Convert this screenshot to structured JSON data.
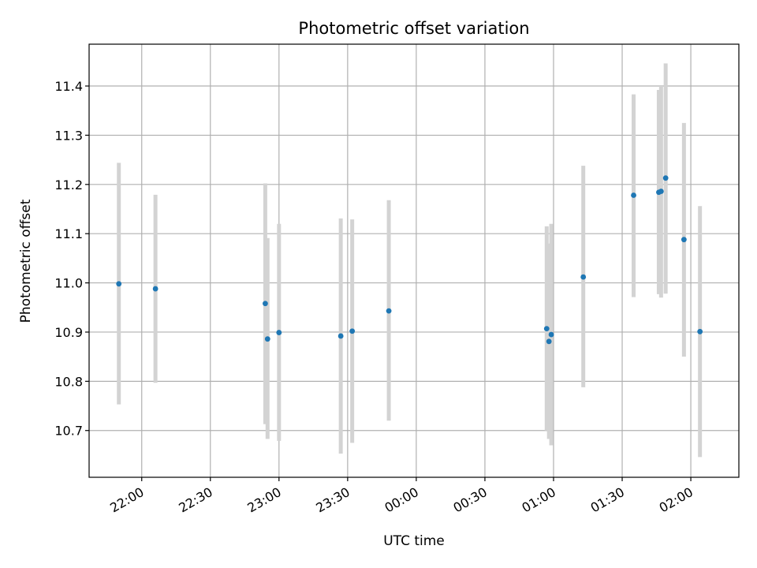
{
  "chart_data": {
    "type": "scatter",
    "title": "Photometric offset variation",
    "xlabel": "UTC time",
    "ylabel": "Photometric offset",
    "x_axis": "time",
    "xlim": [
      "21:37",
      "02:21"
    ],
    "ylim": [
      10.605,
      11.485
    ],
    "x_ticks": [
      "22:00",
      "22:30",
      "23:00",
      "23:30",
      "00:00",
      "00:30",
      "01:00",
      "01:30",
      "02:00"
    ],
    "y_ticks": [
      10.7,
      10.8,
      10.9,
      11.0,
      11.1,
      11.2,
      11.3,
      11.4
    ],
    "grid": true,
    "point_color": "#1f77b4",
    "errorbar_color": "#d3d3d3",
    "series": [
      {
        "points": [
          {
            "t": "21:50",
            "y": 10.998,
            "lo": 10.753,
            "hi": 11.244
          },
          {
            "t": "22:06",
            "y": 10.988,
            "lo": 10.797,
            "hi": 11.179
          },
          {
            "t": "22:54",
            "y": 10.958,
            "lo": 10.713,
            "hi": 11.202
          },
          {
            "t": "22:55",
            "y": 10.886,
            "lo": 10.683,
            "hi": 11.091
          },
          {
            "t": "23:00",
            "y": 10.899,
            "lo": 10.679,
            "hi": 11.12
          },
          {
            "t": "23:27",
            "y": 10.892,
            "lo": 10.653,
            "hi": 11.131
          },
          {
            "t": "23:32",
            "y": 10.902,
            "lo": 10.675,
            "hi": 11.129
          },
          {
            "t": "23:48",
            "y": 10.943,
            "lo": 10.72,
            "hi": 11.168
          },
          {
            "t": "00:57",
            "y": 10.907,
            "lo": 10.7,
            "hi": 11.115
          },
          {
            "t": "00:58",
            "y": 10.881,
            "lo": 10.683,
            "hi": 11.08
          },
          {
            "t": "00:59",
            "y": 10.895,
            "lo": 10.67,
            "hi": 11.12
          },
          {
            "t": "01:13",
            "y": 11.012,
            "lo": 10.788,
            "hi": 11.238
          },
          {
            "t": "01:35",
            "y": 11.178,
            "lo": 10.971,
            "hi": 11.383
          },
          {
            "t": "01:46",
            "y": 11.184,
            "lo": 10.977,
            "hi": 11.392
          },
          {
            "t": "01:47",
            "y": 11.186,
            "lo": 10.97,
            "hi": 11.4
          },
          {
            "t": "01:49",
            "y": 11.213,
            "lo": 10.978,
            "hi": 11.446
          },
          {
            "t": "01:57",
            "y": 11.088,
            "lo": 10.85,
            "hi": 11.325
          },
          {
            "t": "02:04",
            "y": 10.901,
            "lo": 10.646,
            "hi": 11.156
          }
        ]
      }
    ]
  }
}
